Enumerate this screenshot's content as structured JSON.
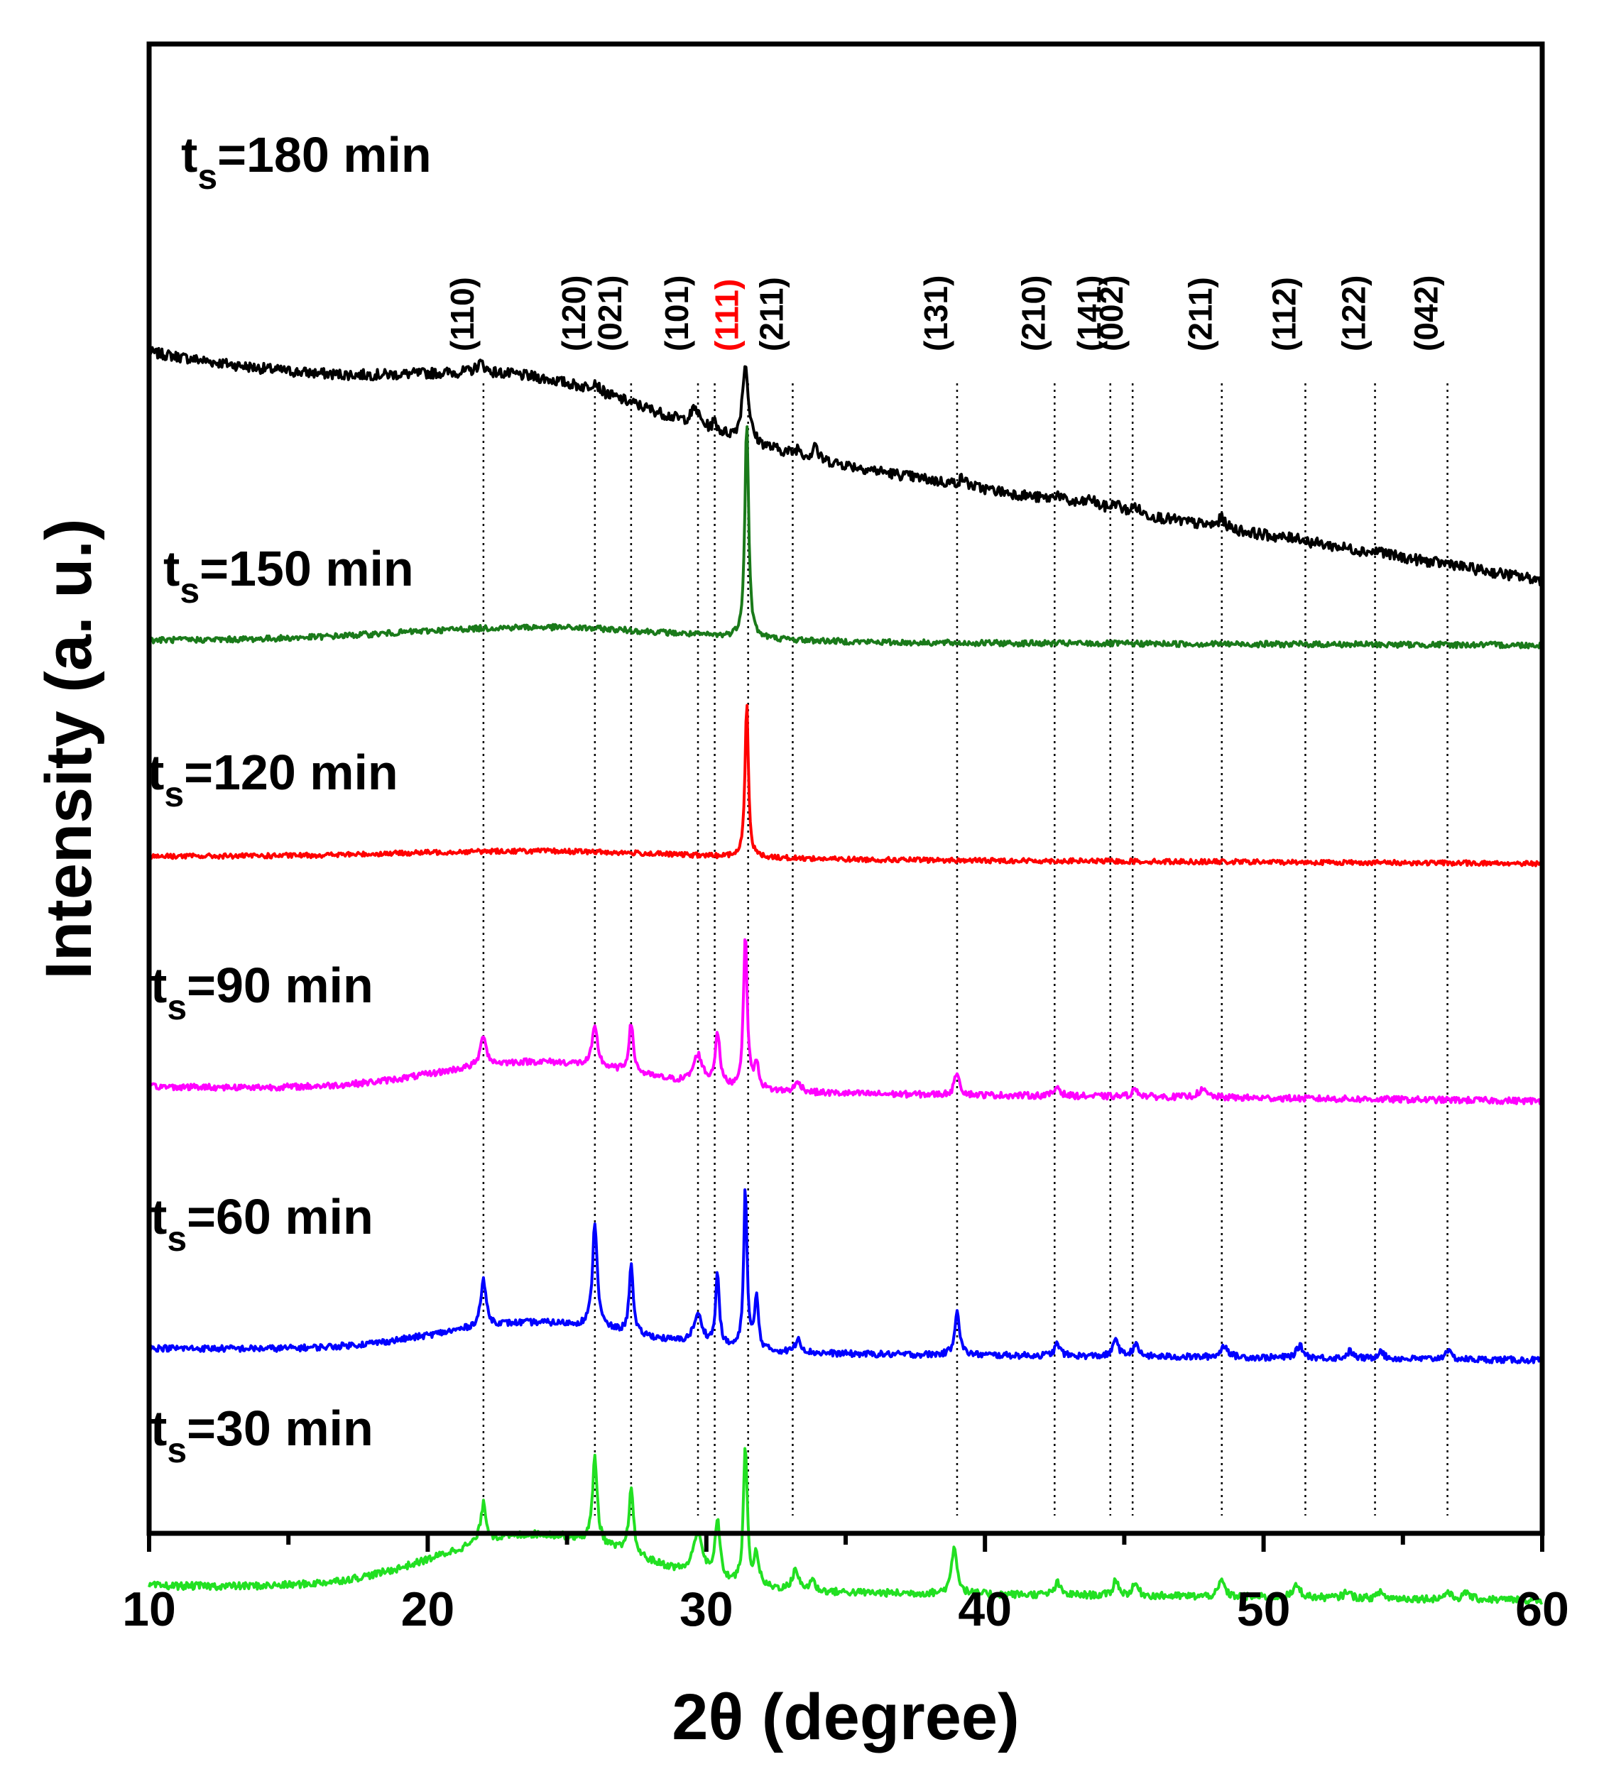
{
  "chart_data": {
    "type": "line",
    "title": "",
    "xlabel": "2θ (degree)",
    "ylabel": "Intensity (a. u.)",
    "xlim": [
      10,
      60
    ],
    "xticks": [
      10,
      20,
      30,
      40,
      50,
      60
    ],
    "x_minor_step": 5,
    "grid": false,
    "legend": "inline labels above each trace",
    "colors": {
      "axis": "#000000",
      "ref_line": "#000000",
      "highlight": "#ff0000"
    },
    "series": [
      {
        "name": "ts=180 min",
        "label_main": "t",
        "label_sub": "s",
        "label_rest": "=180 min",
        "color": "#000000",
        "baseline_start": 12.0,
        "baseline_end": 2.5,
        "noise": 0.22,
        "amorphous": {
          "center": 24,
          "height": 1.6,
          "width": 6
        },
        "peaks": [
          [
            21.9,
            0.4,
            0.18
          ],
          [
            26,
            0.4,
            0.15
          ],
          [
            29.6,
            0.7,
            0.18
          ],
          [
            30.3,
            0.4,
            0.1
          ],
          [
            31.4,
            3.2,
            0.13
          ],
          [
            33.3,
            0.3,
            0.1
          ],
          [
            33.9,
            0.7,
            0.08
          ],
          [
            39.2,
            0.3,
            0.15
          ],
          [
            42.6,
            0.3,
            0.15
          ],
          [
            43.8,
            0.3,
            0.2
          ],
          [
            44.7,
            0.3,
            0.15
          ],
          [
            45.4,
            0.3,
            0.15
          ],
          [
            48.5,
            0.4,
            0.15
          ],
          [
            51.2,
            0.15,
            0.15
          ],
          [
            54.2,
            0.15,
            0.15
          ],
          [
            56.7,
            0.12,
            0.15
          ]
        ]
      },
      {
        "name": "ts=150 min",
        "label_main": "t",
        "label_sub": "s",
        "label_rest": "=150 min",
        "color": "#1a7a1a",
        "baseline_start": 0.0,
        "baseline_end": -0.2,
        "noise": 0.12,
        "amorphous": {
          "center": 24,
          "height": 0.6,
          "width": 7
        },
        "peaks": [
          [
            31.45,
            9.0,
            0.08
          ]
        ]
      },
      {
        "name": "ts=120 min",
        "label_main": "t",
        "label_sub": "s",
        "label_rest": "=120 min",
        "color": "#ff0000",
        "baseline_start": -9.0,
        "baseline_end": -9.3,
        "noise": 0.1,
        "amorphous": {
          "center": 24,
          "height": 0.3,
          "width": 7
        },
        "peaks": [
          [
            31.45,
            6.5,
            0.07
          ]
        ]
      },
      {
        "name": "ts=90 min",
        "label_main": "t",
        "label_sub": "s",
        "label_rest": "=90 min",
        "color": "#ff00ff",
        "baseline_start": -18.6,
        "baseline_end": -19.2,
        "noise": 0.13,
        "amorphous": {
          "center": 24,
          "height": 1.2,
          "width": 5
        },
        "peaks": [
          [
            22,
            1.3,
            0.12
          ],
          [
            26,
            1.6,
            0.12
          ],
          [
            27.3,
            2.0,
            0.1
          ],
          [
            29.7,
            1.2,
            0.2
          ],
          [
            30.4,
            2.2,
            0.1
          ],
          [
            31.4,
            6.4,
            0.08
          ],
          [
            31.8,
            1.0,
            0.1
          ],
          [
            33.3,
            0.4,
            0.15
          ],
          [
            39,
            1.0,
            0.1
          ],
          [
            42.6,
            0.4,
            0.12
          ],
          [
            45.4,
            0.3,
            0.15
          ],
          [
            47.8,
            0.3,
            0.2
          ]
        ]
      },
      {
        "name": "ts=60 min",
        "label_main": "t",
        "label_sub": "s",
        "label_rest": "=60 min",
        "color": "#0000ff",
        "baseline_start": -29.5,
        "baseline_end": -30.0,
        "noise": 0.13,
        "amorphous": {
          "center": 24,
          "height": 1.2,
          "width": 5
        },
        "peaks": [
          [
            22,
            1.9,
            0.12
          ],
          [
            26,
            4.4,
            0.1
          ],
          [
            27.3,
            3.0,
            0.08
          ],
          [
            29.7,
            1.2,
            0.2
          ],
          [
            30.4,
            3.0,
            0.08
          ],
          [
            31.4,
            6.8,
            0.07
          ],
          [
            31.8,
            2.2,
            0.08
          ],
          [
            33.3,
            0.6,
            0.12
          ],
          [
            39,
            1.9,
            0.1
          ],
          [
            42.6,
            0.5,
            0.12
          ],
          [
            44.7,
            0.8,
            0.1
          ],
          [
            45.4,
            0.5,
            0.12
          ],
          [
            48.6,
            0.5,
            0.15
          ],
          [
            51.3,
            0.5,
            0.15
          ],
          [
            53.1,
            0.3,
            0.12
          ],
          [
            54.2,
            0.4,
            0.1
          ],
          [
            56.6,
            0.4,
            0.12
          ]
        ]
      },
      {
        "name": "ts=30 min",
        "label_main": "t",
        "label_sub": "s",
        "label_rest": "=30 min",
        "color": "#22e022",
        "baseline_start": -39.4,
        "baseline_end": -40.0,
        "noise": 0.15,
        "amorphous": {
          "center": 24,
          "height": 2.3,
          "width": 5
        },
        "peaks": [
          [
            22,
            1.6,
            0.12
          ],
          [
            26,
            3.6,
            0.1
          ],
          [
            27.3,
            2.7,
            0.1
          ],
          [
            29.7,
            1.8,
            0.2
          ],
          [
            30.4,
            2.5,
            0.1
          ],
          [
            31.4,
            5.8,
            0.08
          ],
          [
            31.8,
            1.3,
            0.1
          ],
          [
            33.2,
            0.9,
            0.12
          ],
          [
            33.8,
            0.5,
            0.1
          ],
          [
            38.9,
            2.0,
            0.12
          ],
          [
            42.6,
            0.5,
            0.12
          ],
          [
            44.7,
            0.7,
            0.1
          ],
          [
            45.4,
            0.5,
            0.12
          ],
          [
            48.5,
            0.7,
            0.12
          ],
          [
            51.2,
            0.5,
            0.15
          ],
          [
            53,
            0.3,
            0.12
          ],
          [
            54.2,
            0.3,
            0.1
          ],
          [
            56.6,
            0.3,
            0.12
          ],
          [
            57.3,
            0.3,
            0.12
          ]
        ]
      }
    ],
    "reference_lines": [
      {
        "x": 22.0,
        "label": "(110)"
      },
      {
        "x": 26.0,
        "label": "(120)"
      },
      {
        "x": 27.3,
        "label": "(021)"
      },
      {
        "x": 29.7,
        "label": "(101)"
      },
      {
        "x": 30.3,
        "label": ""
      },
      {
        "x": 31.5,
        "label": "(111)",
        "highlight": true
      },
      {
        "x": 33.1,
        "label": "(211)"
      },
      {
        "x": 39.0,
        "label": "(131)"
      },
      {
        "x": 42.5,
        "label": "(210)"
      },
      {
        "x": 44.5,
        "label": "(141)"
      },
      {
        "x": 45.3,
        "label": "(002)"
      },
      {
        "x": 48.5,
        "label": "(211)"
      },
      {
        "x": 51.5,
        "label": "(112)"
      },
      {
        "x": 54.0,
        "label": "(122)"
      },
      {
        "x": 56.6,
        "label": "(042)"
      }
    ]
  }
}
